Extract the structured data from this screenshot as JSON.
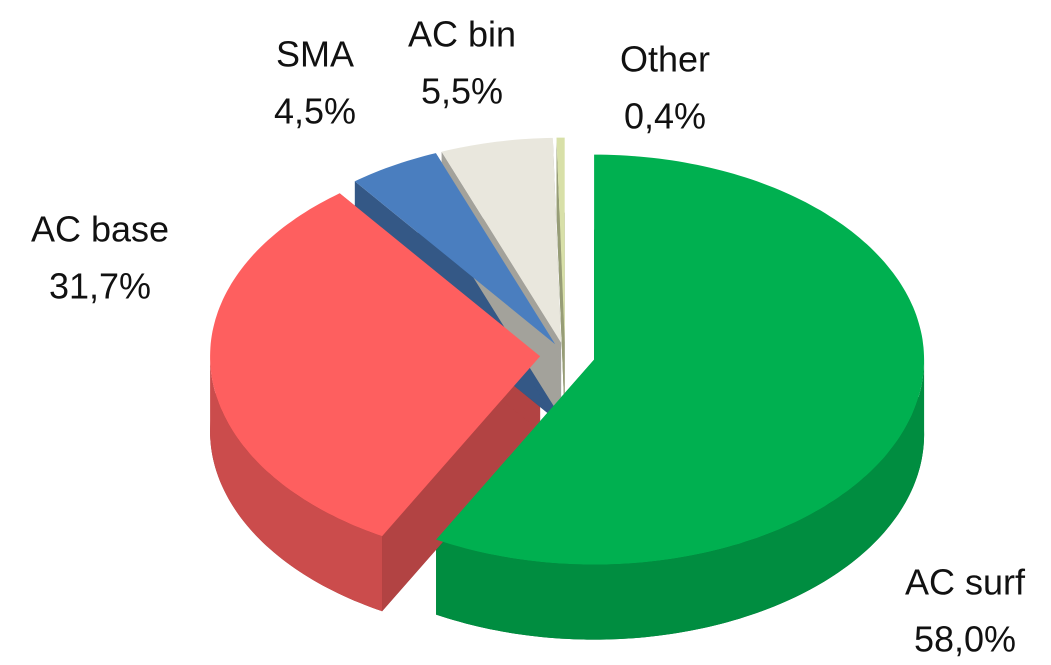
{
  "chart_data": {
    "type": "pie",
    "categories": [
      "AC surf",
      "AC base",
      "SMA",
      "AC bin",
      "Other"
    ],
    "values": [
      58.0,
      31.7,
      4.5,
      5.5,
      0.4
    ],
    "value_labels": [
      "58,0%",
      "31,7%",
      "4,5%",
      "5,5%",
      "0,4%"
    ],
    "colors": [
      "#00b050",
      "#fe5f5f",
      "#4a7ebf",
      "#e9e7dd",
      "#d8e0a8"
    ]
  }
}
